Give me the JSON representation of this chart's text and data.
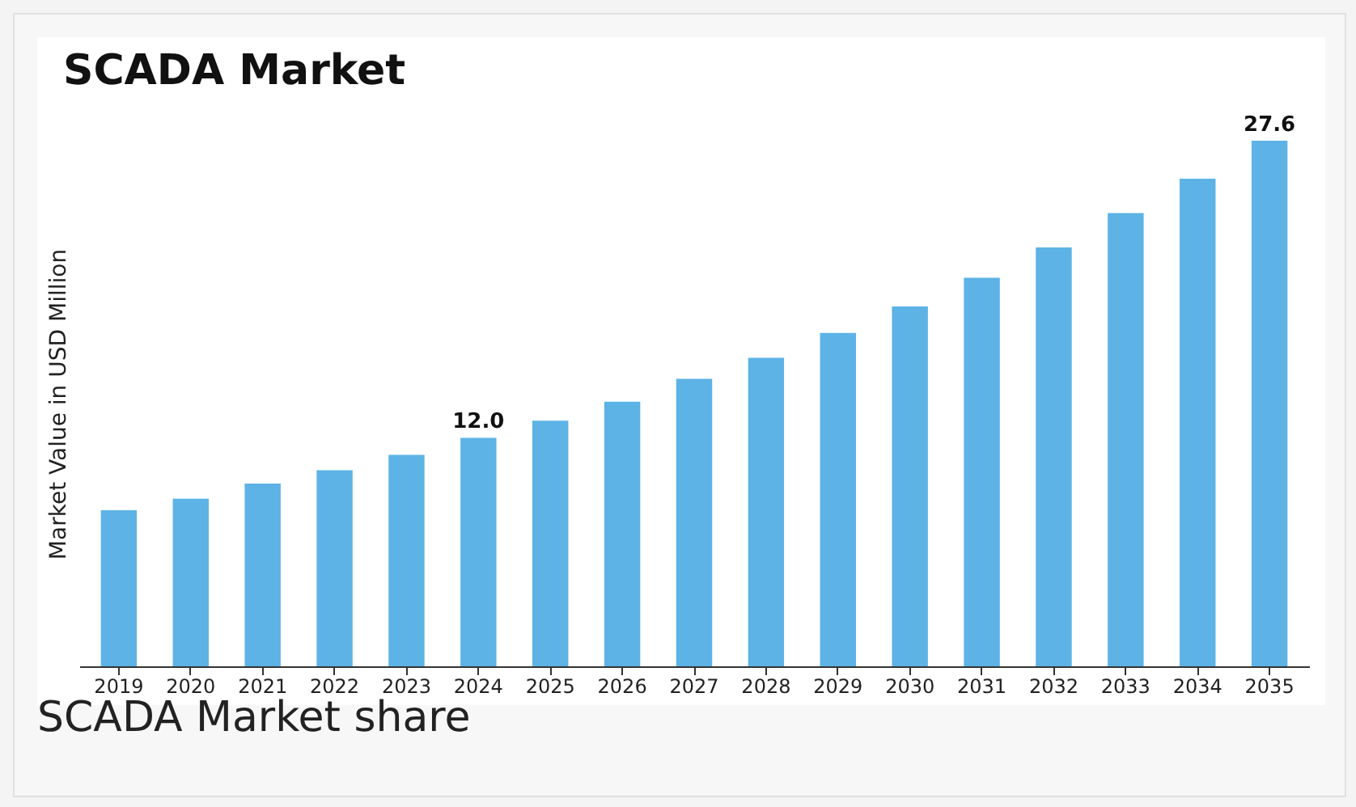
{
  "chart_data": {
    "type": "bar",
    "title": "SCADA Market",
    "ylabel": "Market Value in USD Million",
    "categories": [
      "2019",
      "2020",
      "2021",
      "2022",
      "2023",
      "2024",
      "2025",
      "2026",
      "2027",
      "2028",
      "2029",
      "2030",
      "2031",
      "2032",
      "2033",
      "2034",
      "2035"
    ],
    "values": [
      8.2,
      8.8,
      9.6,
      10.3,
      11.1,
      12.0,
      12.9,
      13.9,
      15.1,
      16.2,
      17.5,
      18.9,
      20.4,
      22.0,
      23.8,
      25.6,
      27.6
    ],
    "value_labels": [
      null,
      null,
      null,
      null,
      null,
      "12.0",
      null,
      null,
      null,
      null,
      null,
      null,
      null,
      null,
      null,
      null,
      "27.6"
    ],
    "color": "#5db3e6",
    "annotations": [
      "SCADA Market share"
    ]
  }
}
